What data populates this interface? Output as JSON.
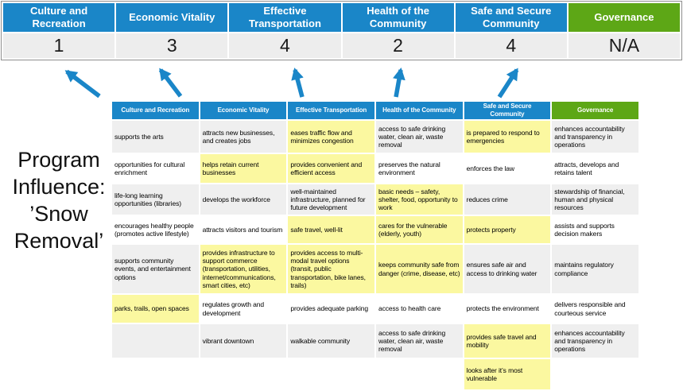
{
  "program_label": "Program\nInfluence:\n’Snow\nRemoval’",
  "colors": {
    "header_blue": "#1A86C8",
    "header_green": "#5DA716",
    "highlight_yellow": "#FBF8A0",
    "row_gray": "#EFEFEF",
    "score_bg": "#EDEDED",
    "arrow_blue": "#1A86C8"
  },
  "top": {
    "columns": [
      {
        "title": "Culture and Recreation",
        "score": "1"
      },
      {
        "title": "Economic Vitality",
        "score": "3"
      },
      {
        "title": "Effective Transportation",
        "score": "4"
      },
      {
        "title": "Health of the Community",
        "score": "2"
      },
      {
        "title": "Safe and Secure Community",
        "score": "4"
      },
      {
        "title": "Governance",
        "score": "N/A"
      }
    ]
  },
  "matrix": {
    "headers": [
      "Culture and Recreation",
      "Economic Vitality",
      "Effective Transportation",
      "Health of the Community",
      "Safe and Secure Community",
      "Governance"
    ],
    "rows": [
      {
        "cells": [
          {
            "text": "supports the arts",
            "hl": false
          },
          {
            "text": "attracts new businesses, and creates jobs",
            "hl": false
          },
          {
            "text": "eases traffic flow and minimizes congestion",
            "hl": true
          },
          {
            "text": "access to safe drinking water, clean air, waste removal",
            "hl": false
          },
          {
            "text": "is prepared to respond to emergencies",
            "hl": true
          },
          {
            "text": "enhances accountability and transparency in operations",
            "hl": false
          }
        ]
      },
      {
        "cells": [
          {
            "text": "opportunities for cultural enrichment",
            "hl": false
          },
          {
            "text": "helps retain current businesses",
            "hl": true
          },
          {
            "text": "provides convenient and efficient access",
            "hl": true
          },
          {
            "text": "preserves the natural environment",
            "hl": false
          },
          {
            "text": "enforces the law",
            "hl": false
          },
          {
            "text": "attracts, develops and retains talent",
            "hl": false
          }
        ]
      },
      {
        "cells": [
          {
            "text": "life-long learning opportunities (libraries)",
            "hl": false
          },
          {
            "text": "develops the workforce",
            "hl": false
          },
          {
            "text": "well-maintained infrastructure, planned for future development",
            "hl": false
          },
          {
            "text": "basic needs – safety, shelter, food, opportunity to work",
            "hl": true
          },
          {
            "text": "reduces crime",
            "hl": false
          },
          {
            "text": "stewardship of financial, human and physical resources",
            "hl": false
          }
        ]
      },
      {
        "cells": [
          {
            "text": "encourages healthy people (promotes active lifestyle)",
            "hl": false
          },
          {
            "text": "attracts visitors and tourism",
            "hl": false
          },
          {
            "text": "safe travel, well-lit",
            "hl": true
          },
          {
            "text": "cares for the vulnerable (elderly, youth)",
            "hl": true
          },
          {
            "text": "protects property",
            "hl": true
          },
          {
            "text": "assists and supports decision makers",
            "hl": false
          }
        ]
      },
      {
        "cells": [
          {
            "text": "supports community events, and entertainment options",
            "hl": false
          },
          {
            "text": "provides infrastructure to support commerce (transportation, utilities, internet/communications, smart cities, etc)",
            "hl": true
          },
          {
            "text": "provides access to multi-modal travel options (transit, public transportation, bike lanes, trails)",
            "hl": true
          },
          {
            "text": "keeps community safe from danger (crime, disease, etc)",
            "hl": true
          },
          {
            "text": "ensures safe air and access to drinking water",
            "hl": false
          },
          {
            "text": "maintains regulatory compliance",
            "hl": false
          }
        ]
      },
      {
        "cells": [
          {
            "text": "parks, trails, open spaces",
            "hl": true
          },
          {
            "text": "regulates growth and development",
            "hl": false
          },
          {
            "text": "provides adequate parking",
            "hl": false
          },
          {
            "text": "access to health care",
            "hl": false
          },
          {
            "text": "protects the environment",
            "hl": false
          },
          {
            "text": "delivers responsible and courteous service",
            "hl": false
          }
        ]
      },
      {
        "cells": [
          {
            "text": "",
            "hl": false
          },
          {
            "text": "vibrant downtown",
            "hl": false
          },
          {
            "text": "walkable community",
            "hl": false
          },
          {
            "text": "access to safe drinking water, clean air, waste removal",
            "hl": false
          },
          {
            "text": "provides safe travel and mobility",
            "hl": true
          },
          {
            "text": "enhances accountability and transparency in operations",
            "hl": false
          }
        ]
      },
      {
        "cells": [
          {
            "text": "",
            "hl": false
          },
          {
            "text": "",
            "hl": false
          },
          {
            "text": "",
            "hl": false
          },
          {
            "text": "",
            "hl": false
          },
          {
            "text": "looks after it’s most vulnerable",
            "hl": true
          },
          {
            "text": "",
            "hl": false
          }
        ]
      }
    ]
  }
}
